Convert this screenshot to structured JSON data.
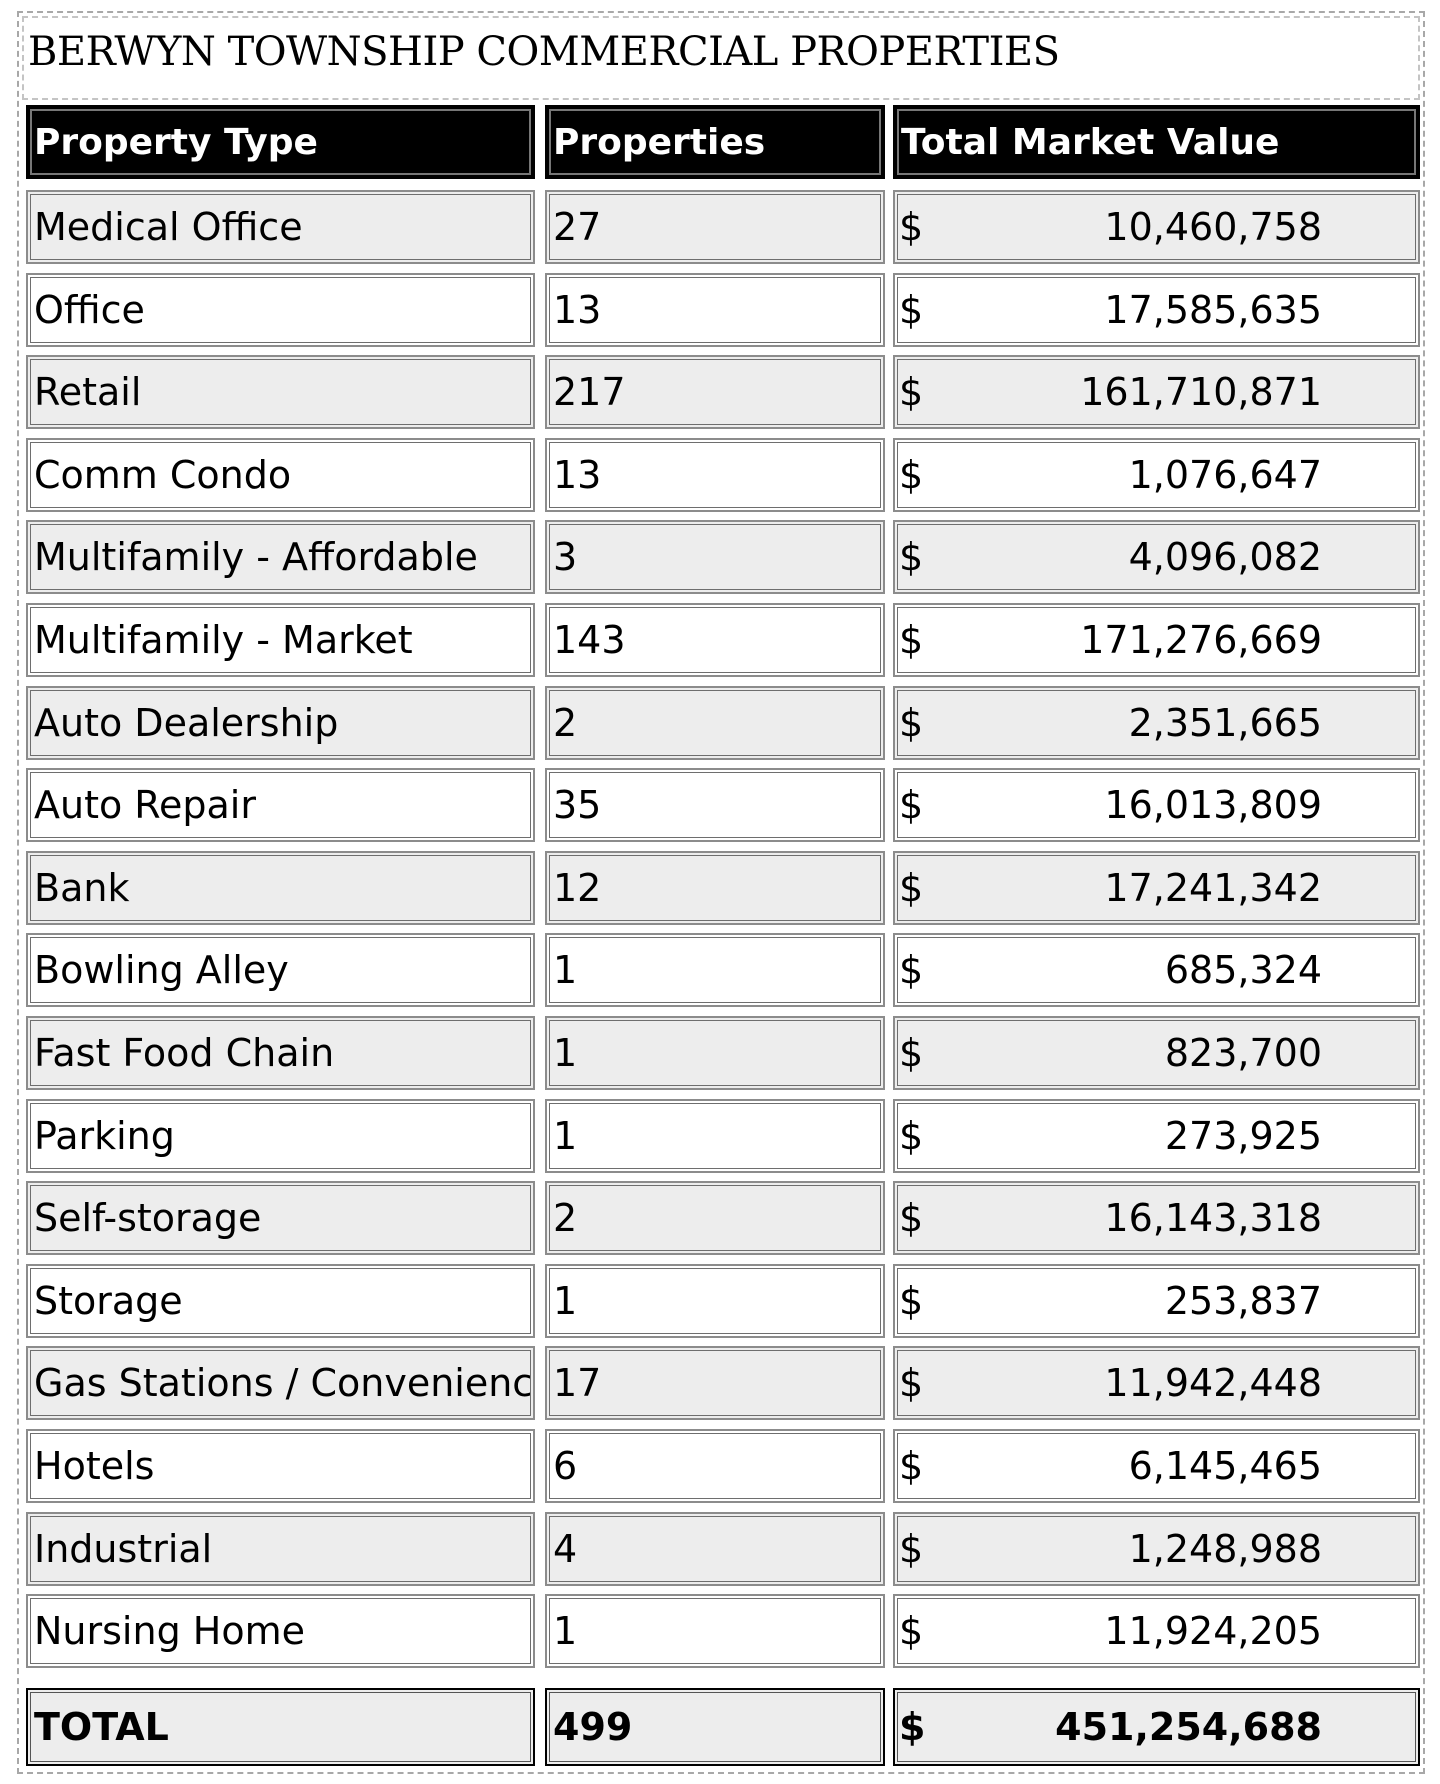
{
  "title": "BERWYN TOWNSHIP COMMERCIAL PROPERTIES",
  "headers": {
    "property_type": "Property Type",
    "properties": "Properties",
    "total_market_value": "Total Market Value"
  },
  "currency_symbol": "$",
  "rows": [
    {
      "type": "Medical Office",
      "count": "27",
      "value": "10,460,758"
    },
    {
      "type": "Office",
      "count": "13",
      "value": "17,585,635"
    },
    {
      "type": "Retail",
      "count": "217",
      "value": "161,710,871"
    },
    {
      "type": "Comm Condo",
      "count": "13",
      "value": "1,076,647"
    },
    {
      "type": "Multifamily - Affordable",
      "count": "3",
      "value": "4,096,082"
    },
    {
      "type": "Multifamily - Market",
      "count": "143",
      "value": "171,276,669"
    },
    {
      "type": "Auto Dealership",
      "count": "2",
      "value": "2,351,665"
    },
    {
      "type": "Auto Repair",
      "count": "35",
      "value": "16,013,809"
    },
    {
      "type": "Bank",
      "count": "12",
      "value": "17,241,342"
    },
    {
      "type": "Bowling Alley",
      "count": "1",
      "value": "685,324"
    },
    {
      "type": "Fast Food Chain",
      "count": "1",
      "value": "823,700"
    },
    {
      "type": "Parking",
      "count": "1",
      "value": "273,925"
    },
    {
      "type": "Self-storage",
      "count": "2",
      "value": "16,143,318"
    },
    {
      "type": "Storage",
      "count": "1",
      "value": "253,837"
    },
    {
      "type": "Gas Stations / Convenience",
      "count": "17",
      "value": "11,942,448"
    },
    {
      "type": "Hotels",
      "count": "6",
      "value": "6,145,465"
    },
    {
      "type": "Industrial",
      "count": "4",
      "value": "1,248,988"
    },
    {
      "type": "Nursing Home",
      "count": "1",
      "value": "11,924,205"
    }
  ],
  "total": {
    "label": "TOTAL",
    "count": "499",
    "value": "451,254,688"
  }
}
